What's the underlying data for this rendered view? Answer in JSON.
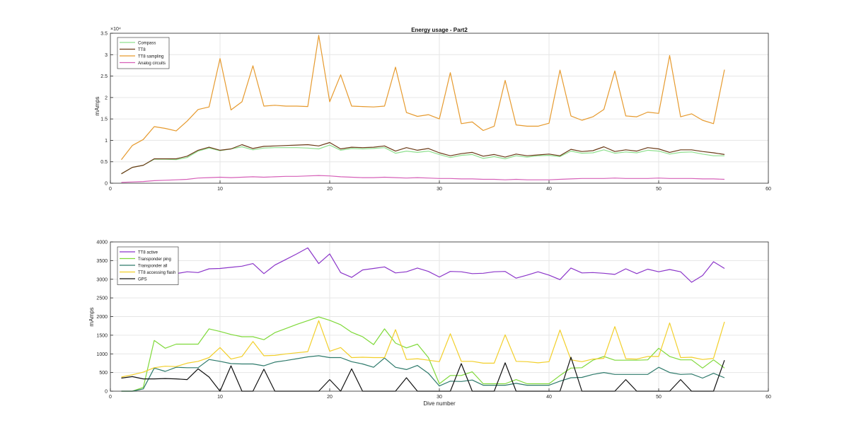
{
  "figure": {
    "background": "#ffffff",
    "axes_color": "#262626",
    "grid_color": "#e6e6e6"
  },
  "chart_data": [
    {
      "type": "line",
      "title": "Energy usage - Part2",
      "xlabel": "",
      "ylabel": "mAmps",
      "xlim": [
        0,
        60
      ],
      "ylim": [
        0,
        35000
      ],
      "xticks": [
        0,
        10,
        20,
        30,
        40,
        50,
        60
      ],
      "yticks": [
        0,
        5000,
        10000,
        15000,
        20000,
        25000,
        30000,
        35000
      ],
      "ytick_labels": [
        "0",
        "0.5",
        "1",
        "1.5",
        "2",
        "2.5",
        "3",
        "3.5"
      ],
      "exponent_label": "×10⁴",
      "grid": true,
      "legend_position": "top-left",
      "x": [
        1,
        2,
        3,
        4,
        5,
        6,
        7,
        8,
        9,
        10,
        11,
        12,
        13,
        14,
        15,
        16,
        17,
        18,
        19,
        20,
        21,
        22,
        23,
        24,
        25,
        26,
        27,
        28,
        29,
        30,
        31,
        32,
        33,
        34,
        35,
        36,
        37,
        38,
        39,
        40,
        41,
        42,
        43,
        44,
        45,
        46,
        47,
        48,
        49,
        50,
        51,
        52,
        53,
        54,
        55,
        56
      ],
      "series": [
        {
          "name": "Compass",
          "color": "#8fe08f",
          "values": [
            2200,
            3700,
            4200,
            5600,
            5600,
            5500,
            6000,
            7500,
            8200,
            7600,
            8000,
            8500,
            7800,
            8200,
            8300,
            8300,
            8300,
            8200,
            8000,
            8900,
            7700,
            8100,
            8000,
            8100,
            8300,
            7000,
            7500,
            7200,
            7500,
            6700,
            6000,
            6500,
            6700,
            5800,
            6200,
            5700,
            6400,
            6100,
            6400,
            6500,
            6200,
            7500,
            7000,
            7100,
            7800,
            7000,
            7300,
            7100,
            7700,
            7500,
            6800,
            7200,
            7300,
            6800,
            6400,
            6400
          ]
        },
        {
          "name": "TT8",
          "color": "#6b3a17",
          "values": [
            2200,
            3700,
            4200,
            5700,
            5700,
            5700,
            6300,
            7700,
            8400,
            7700,
            8000,
            9000,
            8100,
            8600,
            8700,
            8800,
            8900,
            9000,
            8700,
            9500,
            8000,
            8400,
            8300,
            8400,
            8700,
            7500,
            8300,
            7700,
            8100,
            7100,
            6400,
            6900,
            7200,
            6300,
            6700,
            6100,
            6800,
            6400,
            6600,
            6800,
            6400,
            7900,
            7400,
            7600,
            8500,
            7400,
            7800,
            7500,
            8300,
            8000,
            7200,
            7800,
            7800,
            7400,
            7100,
            6700
          ]
        },
        {
          "name": "TT8 sampling",
          "color": "#e69a2e",
          "values": [
            5500,
            8800,
            10200,
            13200,
            12800,
            12200,
            14500,
            17200,
            17800,
            29100,
            17100,
            19000,
            27400,
            18000,
            18200,
            18000,
            18000,
            17900,
            34500,
            19000,
            25300,
            18000,
            17900,
            17800,
            18000,
            27100,
            16500,
            15600,
            16000,
            15000,
            25800,
            13900,
            14300,
            12300,
            13300,
            24000,
            13600,
            13300,
            13300,
            14000,
            26400,
            15700,
            14700,
            15500,
            17200,
            26200,
            15700,
            15500,
            16600,
            16300,
            29800,
            15500,
            16200,
            14700,
            13900,
            26500
          ]
        },
        {
          "name": "Analog circuits",
          "color": "#d660b8",
          "values": [
            200,
            300,
            400,
            600,
            700,
            800,
            900,
            1200,
            1300,
            1400,
            1300,
            1400,
            1500,
            1400,
            1500,
            1600,
            1600,
            1700,
            1800,
            1700,
            1500,
            1400,
            1300,
            1300,
            1400,
            1300,
            1200,
            1300,
            1200,
            1100,
            1100,
            1000,
            1000,
            900,
            900,
            800,
            900,
            800,
            800,
            800,
            900,
            1000,
            1100,
            1100,
            1100,
            1200,
            1100,
            1100,
            1100,
            1200,
            1100,
            1100,
            1100,
            1000,
            1000,
            900
          ]
        }
      ]
    },
    {
      "type": "line",
      "title": "",
      "xlabel": "Dive number",
      "ylabel": "mAmps",
      "xlim": [
        0,
        60
      ],
      "ylim": [
        0,
        4000
      ],
      "xticks": [
        0,
        10,
        20,
        30,
        40,
        50,
        60
      ],
      "yticks": [
        0,
        500,
        1000,
        1500,
        2000,
        2500,
        3000,
        3500,
        4000
      ],
      "ytick_labels": [
        "0",
        "500",
        "1000",
        "1500",
        "2000",
        "2500",
        "3000",
        "3500",
        "4000"
      ],
      "grid": true,
      "legend_position": "top-left",
      "x": [
        1,
        2,
        3,
        4,
        5,
        6,
        7,
        8,
        9,
        10,
        11,
        12,
        13,
        14,
        15,
        16,
        17,
        18,
        19,
        20,
        21,
        22,
        23,
        24,
        25,
        26,
        27,
        28,
        29,
        30,
        31,
        32,
        33,
        34,
        35,
        36,
        37,
        38,
        39,
        40,
        41,
        42,
        43,
        44,
        45,
        46,
        47,
        48,
        49,
        50,
        51,
        52,
        53,
        54,
        55,
        56
      ],
      "series": [
        {
          "name": "TT8 active",
          "color": "#8b35c9",
          "values": [
            2900,
            3050,
            3150,
            3200,
            3150,
            3150,
            3200,
            3180,
            3280,
            3290,
            3320,
            3350,
            3420,
            3150,
            3380,
            3530,
            3680,
            3840,
            3420,
            3680,
            3180,
            3050,
            3250,
            3290,
            3330,
            3170,
            3200,
            3300,
            3210,
            3060,
            3210,
            3200,
            3150,
            3160,
            3200,
            3210,
            3030,
            3110,
            3200,
            3110,
            2990,
            3300,
            3170,
            3180,
            3160,
            3130,
            3280,
            3150,
            3270,
            3200,
            3260,
            3200,
            2920,
            3100,
            3470,
            3290
          ]
        },
        {
          "name": "Transponder ping",
          "color": "#7fd93a",
          "values": [
            0,
            0,
            100,
            1360,
            1150,
            1260,
            1260,
            1260,
            1670,
            1600,
            1520,
            1460,
            1460,
            1380,
            1570,
            1680,
            1790,
            1890,
            1990,
            1900,
            1780,
            1580,
            1460,
            1250,
            1670,
            1290,
            1160,
            1260,
            900,
            200,
            420,
            420,
            520,
            200,
            200,
            200,
            310,
            200,
            200,
            200,
            420,
            620,
            630,
            830,
            930,
            830,
            830,
            830,
            840,
            1150,
            930,
            840,
            840,
            620,
            840,
            620
          ]
        },
        {
          "name": "Transponder all",
          "color": "#2e7a6b",
          "values": [
            0,
            0,
            60,
            620,
            530,
            640,
            630,
            630,
            850,
            800,
            740,
            730,
            730,
            680,
            780,
            820,
            870,
            920,
            950,
            900,
            900,
            790,
            730,
            640,
            890,
            640,
            580,
            690,
            480,
            140,
            270,
            260,
            300,
            160,
            160,
            160,
            210,
            160,
            160,
            160,
            270,
            360,
            370,
            450,
            500,
            450,
            450,
            450,
            450,
            640,
            500,
            450,
            460,
            350,
            480,
            360
          ]
        },
        {
          "name": "TT8 accessing flash",
          "color": "#f2cf2a",
          "values": [
            380,
            440,
            510,
            630,
            670,
            660,
            750,
            800,
            900,
            1170,
            860,
            930,
            1330,
            950,
            960,
            1000,
            1030,
            1060,
            1890,
            1070,
            1170,
            900,
            910,
            900,
            900,
            1650,
            850,
            870,
            830,
            790,
            1540,
            800,
            800,
            750,
            750,
            1510,
            800,
            790,
            760,
            790,
            1640,
            840,
            790,
            860,
            880,
            1730,
            870,
            860,
            930,
            930,
            1830,
            900,
            910,
            850,
            880,
            1860
          ]
        },
        {
          "name": "GPS",
          "color": "#111111",
          "values": [
            350,
            390,
            330,
            330,
            340,
            330,
            310,
            600,
            380,
            0,
            680,
            0,
            0,
            590,
            0,
            0,
            0,
            0,
            0,
            310,
            0,
            600,
            0,
            0,
            0,
            0,
            360,
            0,
            0,
            0,
            0,
            740,
            0,
            0,
            0,
            760,
            0,
            0,
            0,
            0,
            0,
            910,
            0,
            0,
            0,
            0,
            310,
            0,
            0,
            0,
            0,
            310,
            0,
            0,
            0,
            830
          ]
        }
      ]
    }
  ]
}
